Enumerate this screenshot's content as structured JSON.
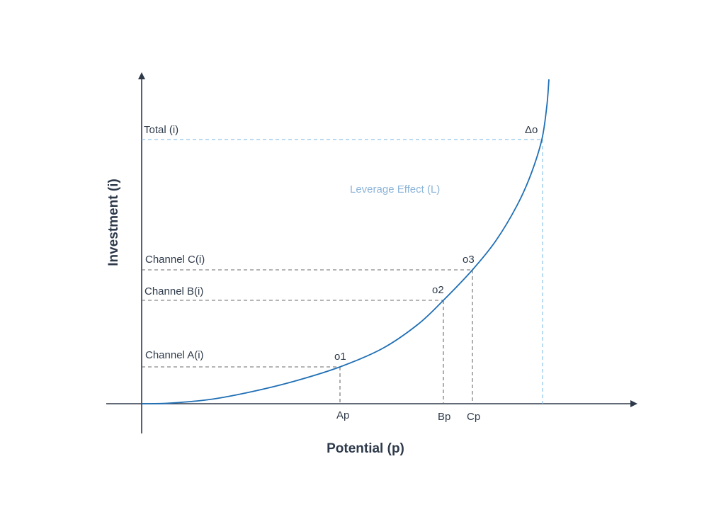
{
  "axes": {
    "x_title": "Potential (p)",
    "y_title": "Investment (i)"
  },
  "y_labels": {
    "total": "Total (i)",
    "channel_c": "Channel C(i)",
    "channel_b": "Channel B(i)",
    "channel_a": "Channel A(i)"
  },
  "x_labels": {
    "a": "Ap",
    "b": "Bp",
    "c": "Cp"
  },
  "points": {
    "o1": "o1",
    "o2": "o2",
    "o3": "o3",
    "delta": "Δo"
  },
  "annotation": {
    "leverage": "Leverage Effect (L)"
  },
  "colors": {
    "curve": "#1f6fb5",
    "axis": "#2e3a4a",
    "channel_guides": "#6b6b6b",
    "total_guides": "#8ec3ea",
    "leverage_text": "#8cb4d9"
  }
}
